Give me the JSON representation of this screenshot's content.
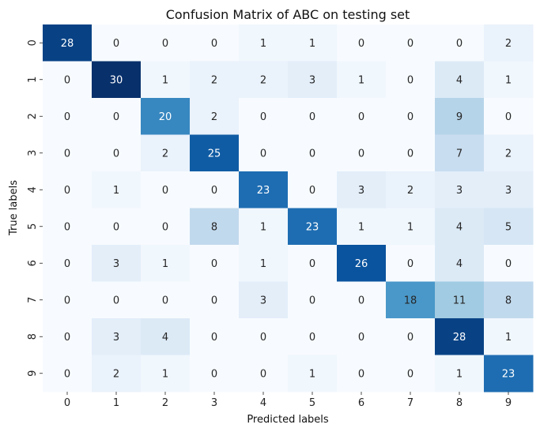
{
  "chart_data": {
    "type": "heatmap",
    "title": "Confusion Matrix of ABC on testing set",
    "xlabel": "Predicted labels",
    "ylabel": "True labels",
    "x_categories": [
      "0",
      "1",
      "2",
      "3",
      "4",
      "5",
      "6",
      "7",
      "8",
      "9"
    ],
    "y_categories": [
      "0",
      "1",
      "2",
      "3",
      "4",
      "5",
      "6",
      "7",
      "8",
      "9"
    ],
    "values": [
      [
        28,
        0,
        0,
        0,
        1,
        1,
        0,
        0,
        0,
        2
      ],
      [
        0,
        30,
        1,
        2,
        2,
        3,
        1,
        0,
        4,
        1
      ],
      [
        0,
        0,
        20,
        2,
        0,
        0,
        0,
        0,
        9,
        0
      ],
      [
        0,
        0,
        2,
        25,
        0,
        0,
        0,
        0,
        7,
        2
      ],
      [
        0,
        1,
        0,
        0,
        23,
        0,
        3,
        2,
        3,
        3
      ],
      [
        0,
        0,
        0,
        8,
        1,
        23,
        1,
        1,
        4,
        5
      ],
      [
        0,
        3,
        1,
        0,
        1,
        0,
        26,
        0,
        4,
        0
      ],
      [
        0,
        0,
        0,
        0,
        3,
        0,
        0,
        18,
        11,
        8
      ],
      [
        0,
        3,
        4,
        0,
        0,
        0,
        0,
        0,
        28,
        1
      ],
      [
        0,
        2,
        1,
        0,
        0,
        1,
        0,
        0,
        1,
        23
      ]
    ],
    "colormap": "Blues",
    "value_range": [
      0,
      30
    ],
    "colorbar": false,
    "annotations": true
  }
}
